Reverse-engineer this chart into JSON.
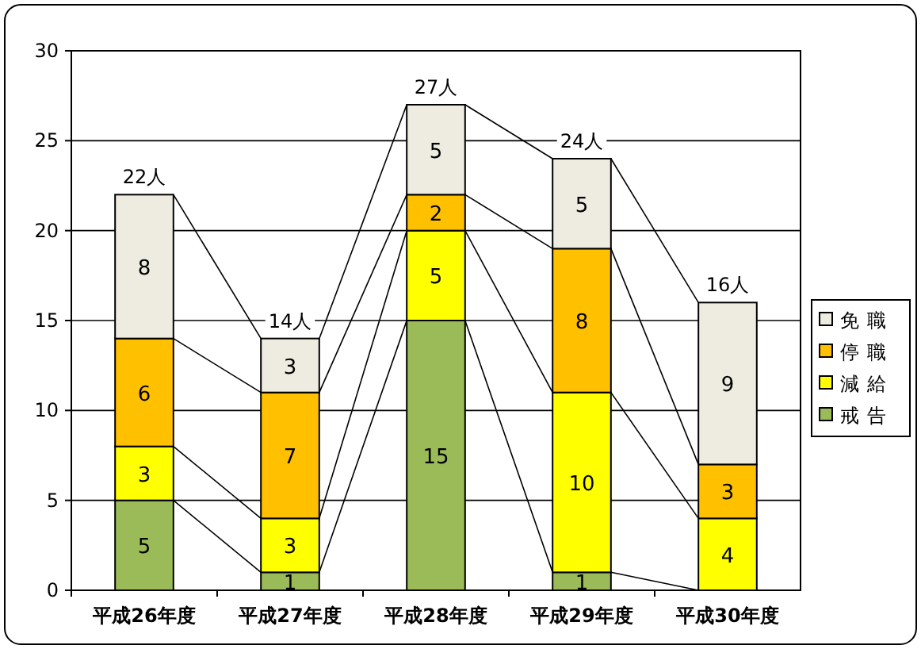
{
  "chart_data": {
    "type": "bar",
    "stacked": true,
    "categories": [
      "平成26年度",
      "平成27年度",
      "平成28年度",
      "平成29年度",
      "平成30年度"
    ],
    "series": [
      {
        "name": "戒告",
        "color": "#9bbb59",
        "values": [
          5,
          1,
          15,
          1,
          0
        ],
        "value_labels": [
          "5",
          "1",
          "15",
          "1",
          null
        ]
      },
      {
        "name": "減給",
        "color": "#ffff00",
        "values": [
          3,
          3,
          5,
          10,
          4
        ],
        "value_labels": [
          "3",
          "3",
          "5",
          "10",
          "4"
        ]
      },
      {
        "name": "停職",
        "color": "#ffc000",
        "values": [
          6,
          7,
          2,
          8,
          3
        ],
        "value_labels": [
          "6",
          "7",
          "2",
          "8",
          "3"
        ]
      },
      {
        "name": "免職",
        "color": "#eeece1",
        "values": [
          8,
          3,
          5,
          5,
          9
        ],
        "value_labels": [
          "8",
          "3",
          "5",
          "5",
          "9"
        ]
      }
    ],
    "totals": [
      "22人",
      "14人",
      "27人",
      "24人",
      "16人"
    ],
    "ylim": [
      0,
      30
    ],
    "yticks": [
      0,
      5,
      10,
      15,
      20,
      25,
      30
    ],
    "grid": "y",
    "legend": "right"
  }
}
